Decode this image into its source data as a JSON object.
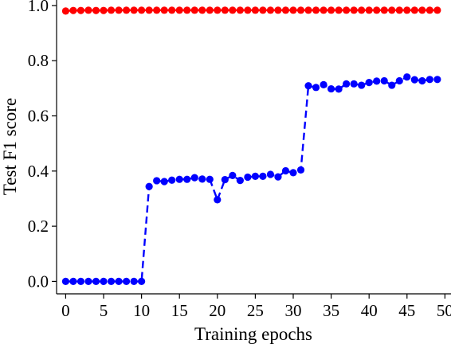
{
  "chart_data": {
    "type": "line",
    "title": "",
    "xlabel": "Training epochs",
    "ylabel": "Test F1 score",
    "xlim": [
      -1.2,
      50.8
    ],
    "ylim": [
      -0.045,
      1.02
    ],
    "xticks": [
      0,
      5,
      10,
      15,
      20,
      25,
      30,
      35,
      40,
      45,
      50
    ],
    "yticks": [
      0.0,
      0.2,
      0.4,
      0.6,
      0.8,
      1.0
    ],
    "ytick_labels": [
      "0.0",
      "0.2",
      "0.4",
      "0.6",
      "0.8",
      "1.0"
    ],
    "grid": false,
    "legend": "none",
    "series": [
      {
        "color": "#ff0000",
        "line_style": "solid",
        "marker": "circle",
        "x": [
          0,
          1,
          2,
          3,
          4,
          5,
          6,
          7,
          8,
          9,
          10,
          11,
          12,
          13,
          14,
          15,
          16,
          17,
          18,
          19,
          20,
          21,
          22,
          23,
          24,
          25,
          26,
          27,
          28,
          29,
          30,
          31,
          32,
          33,
          34,
          35,
          36,
          37,
          38,
          39,
          40,
          41,
          42,
          43,
          44,
          45,
          46,
          47,
          48,
          49
        ],
        "y": [
          0.98,
          0.982,
          0.982,
          0.983,
          0.982,
          0.982,
          0.983,
          0.983,
          0.983,
          0.983,
          0.983,
          0.983,
          0.983,
          0.983,
          0.983,
          0.983,
          0.983,
          0.983,
          0.983,
          0.983,
          0.983,
          0.983,
          0.983,
          0.983,
          0.983,
          0.983,
          0.983,
          0.983,
          0.983,
          0.983,
          0.983,
          0.983,
          0.983,
          0.983,
          0.983,
          0.983,
          0.983,
          0.983,
          0.983,
          0.983,
          0.983,
          0.983,
          0.983,
          0.983,
          0.983,
          0.983,
          0.983,
          0.983,
          0.983,
          0.983
        ]
      },
      {
        "color": "#0000ff",
        "line_style": "dashed",
        "marker": "circle",
        "x": [
          0,
          1,
          2,
          3,
          4,
          5,
          6,
          7,
          8,
          9,
          10,
          11,
          12,
          13,
          14,
          15,
          16,
          17,
          18,
          19,
          20,
          21,
          22,
          23,
          24,
          25,
          26,
          27,
          28,
          29,
          30,
          31,
          32,
          33,
          34,
          35,
          36,
          37,
          38,
          39,
          40,
          41,
          42,
          43,
          44,
          45,
          46,
          47,
          48,
          49
        ],
        "y": [
          0.0,
          0.0,
          0.0,
          0.0,
          0.0,
          0.0,
          0.0,
          0.0,
          0.0,
          0.0,
          0.0,
          0.344,
          0.365,
          0.362,
          0.367,
          0.37,
          0.37,
          0.376,
          0.371,
          0.37,
          0.296,
          0.369,
          0.384,
          0.366,
          0.378,
          0.381,
          0.381,
          0.388,
          0.379,
          0.401,
          0.394,
          0.404,
          0.709,
          0.703,
          0.713,
          0.698,
          0.697,
          0.716,
          0.716,
          0.711,
          0.721,
          0.726,
          0.727,
          0.711,
          0.727,
          0.741,
          0.731,
          0.727,
          0.732,
          0.732
        ]
      }
    ]
  }
}
